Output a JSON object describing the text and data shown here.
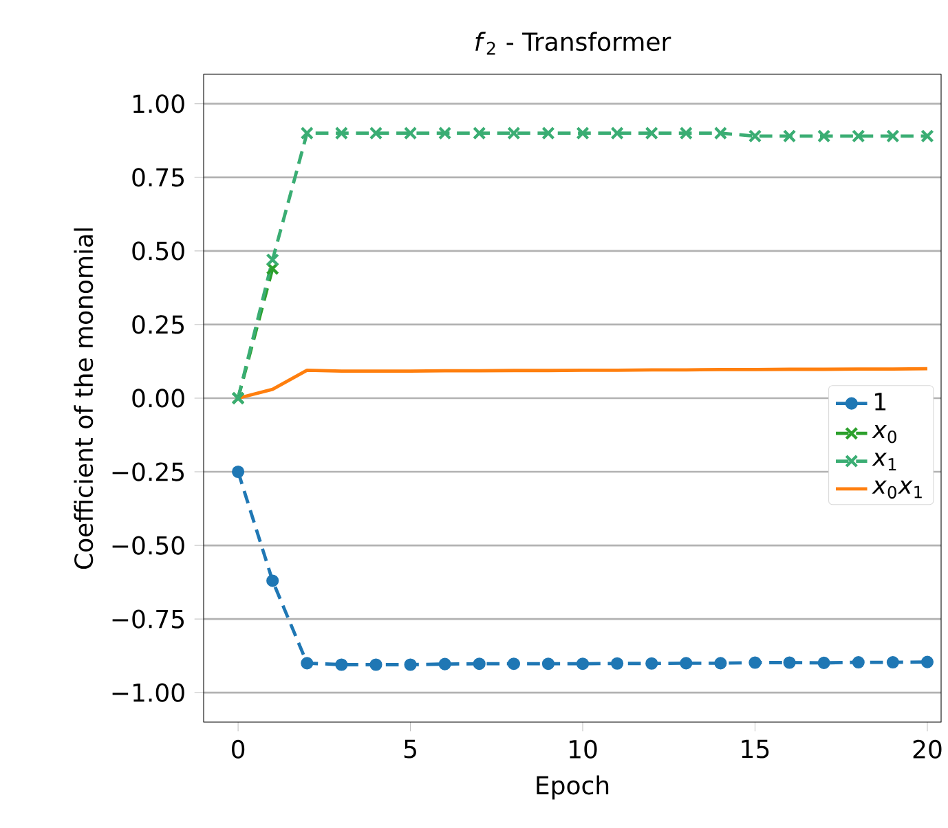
{
  "chart_data": {
    "type": "line",
    "title": "*f*$_{2}$ - Transformer",
    "xlabel": "Epoch",
    "ylabel": "Coefficient of the monomial",
    "x": [
      0,
      1,
      2,
      3,
      4,
      5,
      6,
      7,
      8,
      9,
      10,
      11,
      12,
      13,
      14,
      15,
      16,
      17,
      18,
      19,
      20
    ],
    "series": [
      {
        "name": "1",
        "color": "#1f77b4",
        "marker": "circle",
        "line_style": "dashed",
        "values": [
          -0.25,
          -0.62,
          -0.9,
          -0.905,
          -0.905,
          -0.905,
          -0.903,
          -0.902,
          -0.902,
          -0.902,
          -0.902,
          -0.901,
          -0.901,
          -0.9,
          -0.9,
          -0.898,
          -0.898,
          -0.899,
          -0.897,
          -0.897,
          -0.896
        ]
      },
      {
        "name": "*x*$_{0}$",
        "color": "#2ca02c",
        "marker": "cross",
        "line_style": "dashed",
        "values": [
          0.0,
          0.44,
          null,
          null,
          null,
          null,
          null,
          null,
          null,
          null,
          null,
          null,
          null,
          null,
          null,
          null,
          null,
          null,
          null,
          null,
          null
        ]
      },
      {
        "name": "*x*$_{1}$",
        "color": "#3aad73",
        "marker": "cross",
        "line_style": "dashed",
        "values": [
          0.0,
          0.47,
          0.9,
          0.9,
          0.9,
          0.9,
          0.9,
          0.9,
          0.9,
          0.9,
          0.9,
          0.9,
          0.9,
          0.9,
          0.9,
          0.89,
          0.89,
          0.89,
          0.89,
          0.89,
          0.89
        ]
      },
      {
        "name": "*x*$_{0}$*x*$_{1}$",
        "color": "#ff7f0e",
        "marker": "none",
        "line_style": "solid",
        "values": [
          0.0,
          0.03,
          0.095,
          0.092,
          0.092,
          0.092,
          0.093,
          0.093,
          0.094,
          0.094,
          0.095,
          0.095,
          0.096,
          0.096,
          0.097,
          0.097,
          0.098,
          0.098,
          0.099,
          0.099,
          0.1
        ]
      }
    ],
    "xlim": [
      -1,
      20.4
    ],
    "ylim": [
      -1.1,
      1.1
    ],
    "xticks": [
      0,
      5,
      10,
      15,
      20
    ],
    "yticks": [
      {
        "value": 1.0,
        "label": "1.00"
      },
      {
        "value": 0.75,
        "label": "0.75"
      },
      {
        "value": 0.5,
        "label": "0.50"
      },
      {
        "value": 0.25,
        "label": "0.25"
      },
      {
        "value": 0.0,
        "label": "0.00"
      },
      {
        "value": -0.25,
        "label": "−0.25"
      },
      {
        "value": -0.5,
        "label": "−0.50"
      },
      {
        "value": -0.75,
        "label": "−0.75"
      },
      {
        "value": -1.0,
        "label": "−1.00"
      }
    ],
    "grid": "y",
    "legend": "right"
  }
}
